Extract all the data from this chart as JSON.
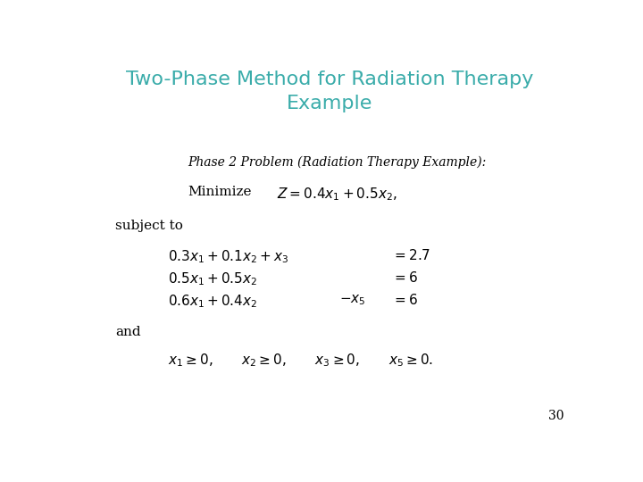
{
  "title_line1": "Two-Phase Method for Radiation Therapy",
  "title_line2": "Example",
  "title_color": "#3AACAA",
  "title_fontsize": 16,
  "bg_color": "#ffffff",
  "page_number": "30",
  "phase_label": "Phase 2 Problem (Radiation Therapy Example):",
  "phase_fontsize": 10,
  "body_fontsize": 11,
  "small_fontsize": 10
}
